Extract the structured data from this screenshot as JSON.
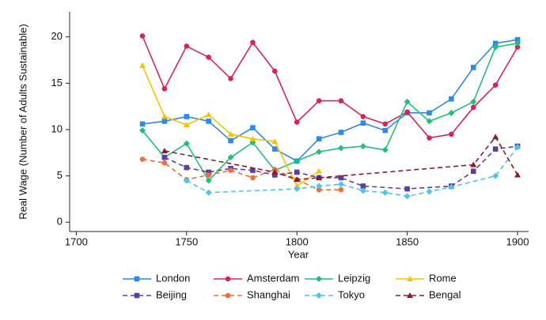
{
  "chart_data": {
    "type": "line",
    "x_label": "Year",
    "y_label": "Real Wage (Number of Adults Sustainable)",
    "xlim": [
      1697,
      1905
    ],
    "ylim": [
      -1,
      22.7
    ],
    "xticks": [
      1700,
      1750,
      1800,
      1850,
      1900
    ],
    "yticks": [
      0,
      5,
      10,
      15,
      20
    ],
    "series": [
      {
        "name": "London",
        "color": "#2e8ae6",
        "marker": "square",
        "dashed": false,
        "x": [
          1730,
          1740,
          1750,
          1760,
          1770,
          1780,
          1790,
          1800,
          1810,
          1820,
          1830,
          1840,
          1850,
          1860,
          1870,
          1880,
          1890,
          1900
        ],
        "values": [
          10.6,
          10.9,
          11.4,
          10.9,
          8.8,
          10.2,
          7.9,
          6.6,
          9.0,
          9.7,
          10.7,
          9.9,
          11.8,
          11.8,
          13.3,
          16.7,
          19.3,
          19.7
        ]
      },
      {
        "name": "Amsterdam",
        "color": "#d6245a",
        "marker": "circle",
        "dashed": false,
        "x": [
          1730,
          1740,
          1750,
          1760,
          1770,
          1780,
          1790,
          1800,
          1810,
          1820,
          1830,
          1840,
          1850,
          1860,
          1870,
          1880,
          1890,
          1900
        ],
        "values": [
          20.1,
          14.4,
          19.0,
          17.8,
          15.5,
          19.4,
          16.3,
          10.8,
          13.1,
          13.1,
          11.4,
          10.6,
          11.9,
          9.1,
          9.5,
          12.4,
          14.8,
          18.9
        ]
      },
      {
        "name": "Leipzig",
        "color": "#1fbf7a",
        "marker": "diamond",
        "dashed": false,
        "x": [
          1730,
          1740,
          1750,
          1760,
          1770,
          1780,
          1790,
          1800,
          1810,
          1820,
          1830,
          1840,
          1850,
          1860,
          1870,
          1880,
          1890,
          1900
        ],
        "values": [
          9.9,
          7.0,
          8.5,
          4.5,
          7.0,
          8.6,
          5.6,
          6.6,
          7.6,
          8.0,
          8.2,
          7.8,
          13.0,
          10.9,
          11.8,
          13.0,
          18.9,
          19.3
        ]
      },
      {
        "name": "Rome",
        "color": "#f5c400",
        "marker": "triangle",
        "dashed": false,
        "x": [
          1730,
          1740,
          1750,
          1760,
          1770,
          1780,
          1790,
          1800,
          1810
        ],
        "values": [
          16.9,
          11.4,
          10.5,
          11.6,
          9.5,
          9.0,
          8.7,
          3.9,
          5.5
        ]
      },
      {
        "name": "Beijing",
        "color": "#5a3ea0",
        "marker": "square",
        "dashed": true,
        "x": [
          1740,
          1750,
          1760,
          1770,
          1780,
          1790,
          1800,
          1810,
          1820,
          1830,
          1850,
          1870,
          1880,
          1890,
          1900
        ],
        "values": [
          7.0,
          5.9,
          5.4,
          5.8,
          5.6,
          5.1,
          5.4,
          4.8,
          4.8,
          3.9,
          3.6,
          3.9,
          5.5,
          7.9,
          8.2
        ]
      },
      {
        "name": "Shanghai",
        "color": "#f26b3a",
        "marker": "circle",
        "dashed": true,
        "x": [
          1730,
          1740,
          1750,
          1760,
          1770,
          1780,
          1790,
          1800,
          1810,
          1820
        ],
        "values": [
          6.8,
          6.4,
          4.6,
          5.1,
          5.6,
          4.8,
          5.7,
          4.6,
          3.5,
          3.5
        ]
      },
      {
        "name": "Tokyo",
        "color": "#4cc3f0",
        "marker": "diamond",
        "dashed": true,
        "x": [
          1750,
          1760,
          1800,
          1810,
          1820,
          1830,
          1840,
          1850,
          1860,
          1870,
          1890,
          1900
        ],
        "values": [
          4.5,
          3.2,
          3.6,
          3.9,
          4.1,
          3.4,
          3.2,
          2.8,
          3.3,
          3.8,
          5.0,
          8.1
        ]
      },
      {
        "name": "Bengal",
        "color": "#8b1a2b",
        "marker": "triangle",
        "dashed": true,
        "x": [
          1740,
          1790,
          1800,
          1810,
          1880,
          1890,
          1900
        ],
        "values": [
          7.7,
          5.4,
          4.6,
          4.8,
          6.2,
          9.2,
          5.1
        ]
      }
    ]
  }
}
